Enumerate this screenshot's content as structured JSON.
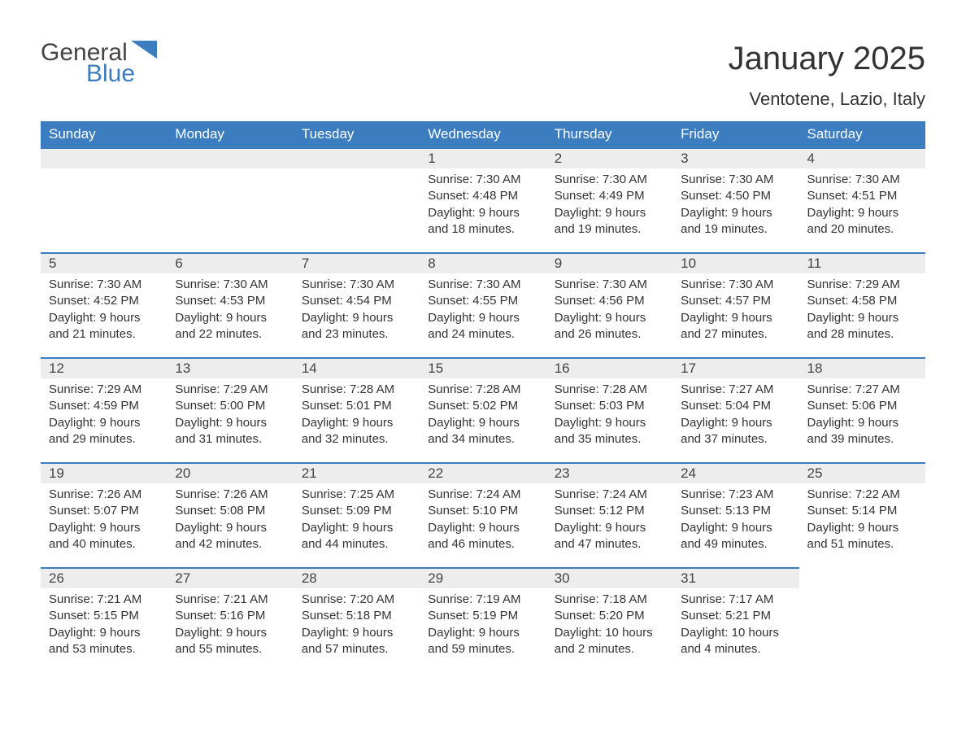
{
  "logo": {
    "general": "General",
    "blue": "Blue"
  },
  "title": "January 2025",
  "location": "Ventotene, Lazio, Italy",
  "colors": {
    "header_bg": "#3b7dbf",
    "header_text": "#ffffff",
    "daynum_bg": "#ededed",
    "border_top": "#3b7dbf",
    "body_text": "#333333",
    "page_bg": "#ffffff",
    "logo_gray": "#444444",
    "logo_blue": "#3b7dbf"
  },
  "typography": {
    "title_fontsize": 40,
    "location_fontsize": 22,
    "header_fontsize": 17,
    "daynum_fontsize": 17,
    "cell_fontsize": 15,
    "logo_fontsize": 30
  },
  "columns": [
    "Sunday",
    "Monday",
    "Tuesday",
    "Wednesday",
    "Thursday",
    "Friday",
    "Saturday"
  ],
  "weeks": [
    [
      null,
      null,
      null,
      {
        "n": "1",
        "sunrise": "7:30 AM",
        "sunset": "4:48 PM",
        "daylight": "9 hours and 18 minutes."
      },
      {
        "n": "2",
        "sunrise": "7:30 AM",
        "sunset": "4:49 PM",
        "daylight": "9 hours and 19 minutes."
      },
      {
        "n": "3",
        "sunrise": "7:30 AM",
        "sunset": "4:50 PM",
        "daylight": "9 hours and 19 minutes."
      },
      {
        "n": "4",
        "sunrise": "7:30 AM",
        "sunset": "4:51 PM",
        "daylight": "9 hours and 20 minutes."
      }
    ],
    [
      {
        "n": "5",
        "sunrise": "7:30 AM",
        "sunset": "4:52 PM",
        "daylight": "9 hours and 21 minutes."
      },
      {
        "n": "6",
        "sunrise": "7:30 AM",
        "sunset": "4:53 PM",
        "daylight": "9 hours and 22 minutes."
      },
      {
        "n": "7",
        "sunrise": "7:30 AM",
        "sunset": "4:54 PM",
        "daylight": "9 hours and 23 minutes."
      },
      {
        "n": "8",
        "sunrise": "7:30 AM",
        "sunset": "4:55 PM",
        "daylight": "9 hours and 24 minutes."
      },
      {
        "n": "9",
        "sunrise": "7:30 AM",
        "sunset": "4:56 PM",
        "daylight": "9 hours and 26 minutes."
      },
      {
        "n": "10",
        "sunrise": "7:30 AM",
        "sunset": "4:57 PM",
        "daylight": "9 hours and 27 minutes."
      },
      {
        "n": "11",
        "sunrise": "7:29 AM",
        "sunset": "4:58 PM",
        "daylight": "9 hours and 28 minutes."
      }
    ],
    [
      {
        "n": "12",
        "sunrise": "7:29 AM",
        "sunset": "4:59 PM",
        "daylight": "9 hours and 29 minutes."
      },
      {
        "n": "13",
        "sunrise": "7:29 AM",
        "sunset": "5:00 PM",
        "daylight": "9 hours and 31 minutes."
      },
      {
        "n": "14",
        "sunrise": "7:28 AM",
        "sunset": "5:01 PM",
        "daylight": "9 hours and 32 minutes."
      },
      {
        "n": "15",
        "sunrise": "7:28 AM",
        "sunset": "5:02 PM",
        "daylight": "9 hours and 34 minutes."
      },
      {
        "n": "16",
        "sunrise": "7:28 AM",
        "sunset": "5:03 PM",
        "daylight": "9 hours and 35 minutes."
      },
      {
        "n": "17",
        "sunrise": "7:27 AM",
        "sunset": "5:04 PM",
        "daylight": "9 hours and 37 minutes."
      },
      {
        "n": "18",
        "sunrise": "7:27 AM",
        "sunset": "5:06 PM",
        "daylight": "9 hours and 39 minutes."
      }
    ],
    [
      {
        "n": "19",
        "sunrise": "7:26 AM",
        "sunset": "5:07 PM",
        "daylight": "9 hours and 40 minutes."
      },
      {
        "n": "20",
        "sunrise": "7:26 AM",
        "sunset": "5:08 PM",
        "daylight": "9 hours and 42 minutes."
      },
      {
        "n": "21",
        "sunrise": "7:25 AM",
        "sunset": "5:09 PM",
        "daylight": "9 hours and 44 minutes."
      },
      {
        "n": "22",
        "sunrise": "7:24 AM",
        "sunset": "5:10 PM",
        "daylight": "9 hours and 46 minutes."
      },
      {
        "n": "23",
        "sunrise": "7:24 AM",
        "sunset": "5:12 PM",
        "daylight": "9 hours and 47 minutes."
      },
      {
        "n": "24",
        "sunrise": "7:23 AM",
        "sunset": "5:13 PM",
        "daylight": "9 hours and 49 minutes."
      },
      {
        "n": "25",
        "sunrise": "7:22 AM",
        "sunset": "5:14 PM",
        "daylight": "9 hours and 51 minutes."
      }
    ],
    [
      {
        "n": "26",
        "sunrise": "7:21 AM",
        "sunset": "5:15 PM",
        "daylight": "9 hours and 53 minutes."
      },
      {
        "n": "27",
        "sunrise": "7:21 AM",
        "sunset": "5:16 PM",
        "daylight": "9 hours and 55 minutes."
      },
      {
        "n": "28",
        "sunrise": "7:20 AM",
        "sunset": "5:18 PM",
        "daylight": "9 hours and 57 minutes."
      },
      {
        "n": "29",
        "sunrise": "7:19 AM",
        "sunset": "5:19 PM",
        "daylight": "9 hours and 59 minutes."
      },
      {
        "n": "30",
        "sunrise": "7:18 AM",
        "sunset": "5:20 PM",
        "daylight": "10 hours and 2 minutes."
      },
      {
        "n": "31",
        "sunrise": "7:17 AM",
        "sunset": "5:21 PM",
        "daylight": "10 hours and 4 minutes."
      },
      null
    ]
  ],
  "labels": {
    "sunrise_prefix": "Sunrise: ",
    "sunset_prefix": "Sunset: ",
    "daylight_prefix": "Daylight: "
  }
}
